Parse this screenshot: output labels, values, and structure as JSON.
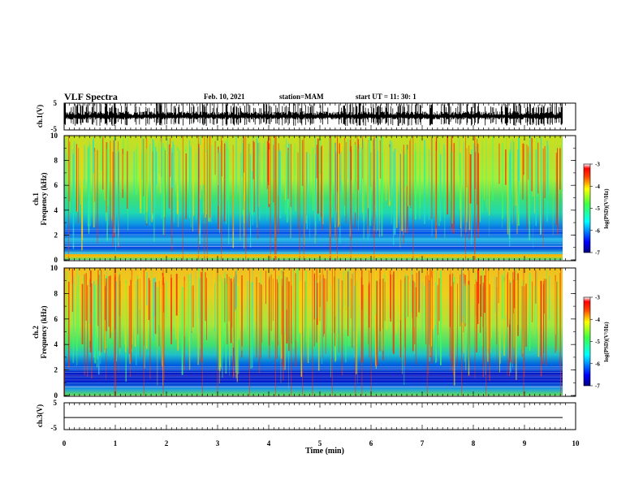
{
  "header": {
    "title": "VLF Spectra",
    "date": "Feb. 10, 2021",
    "station": "station=MAM",
    "start": "start  UT =   11: 30: 1"
  },
  "chart_data": [
    {
      "type": "line",
      "panel": "ch1-waveform",
      "ylabel": "ch.1(V)",
      "ylim": [
        -5,
        5
      ],
      "yticks": [
        "5",
        "-5"
      ],
      "x": "Time (min)",
      "xlim": [
        0,
        10
      ],
      "description_values": {
        "amplitude_range": [
          -2,
          3
        ]
      }
    },
    {
      "type": "heatmap",
      "panel": "ch1-spectrogram",
      "ylabel": "ch.1\nFrequency  (kHz)",
      "ylabel_line1": "ch.1",
      "ylabel_line2": "Frequency  (kHz)",
      "ylim": [
        0,
        10
      ],
      "yticks": [
        "0",
        "2",
        "4",
        "6",
        "8",
        "10"
      ],
      "colorbar": {
        "label": "log(PSD)(V²/Hz)",
        "range": [
          -7,
          -3
        ],
        "ticks": [
          "-3",
          "-4",
          "-5",
          "-6",
          "-7"
        ]
      }
    },
    {
      "type": "heatmap",
      "panel": "ch2-spectrogram",
      "ylabel_line1": "ch.2",
      "ylabel_line2": "Frequency  (kHz)",
      "ylim": [
        0,
        10
      ],
      "yticks": [
        "0",
        "2",
        "4",
        "6",
        "8",
        "10"
      ],
      "colorbar": {
        "label": "log(PSD)(V²/Hz)",
        "range": [
          -7,
          -3
        ],
        "ticks": [
          "-3",
          "-4",
          "-5",
          "-6",
          "-7"
        ]
      }
    },
    {
      "type": "line",
      "panel": "ch3-waveform",
      "ylabel": "ch.3(V)",
      "ylim": [
        -5,
        5
      ],
      "yticks": [
        "5",
        "-5"
      ],
      "values": [
        -0.5
      ],
      "xlabel": "Time  (min)",
      "xlim": [
        0,
        10
      ],
      "xticks": [
        "0",
        "1",
        "2",
        "3",
        "4",
        "5",
        "6",
        "7",
        "8",
        "9",
        "10"
      ]
    }
  ]
}
